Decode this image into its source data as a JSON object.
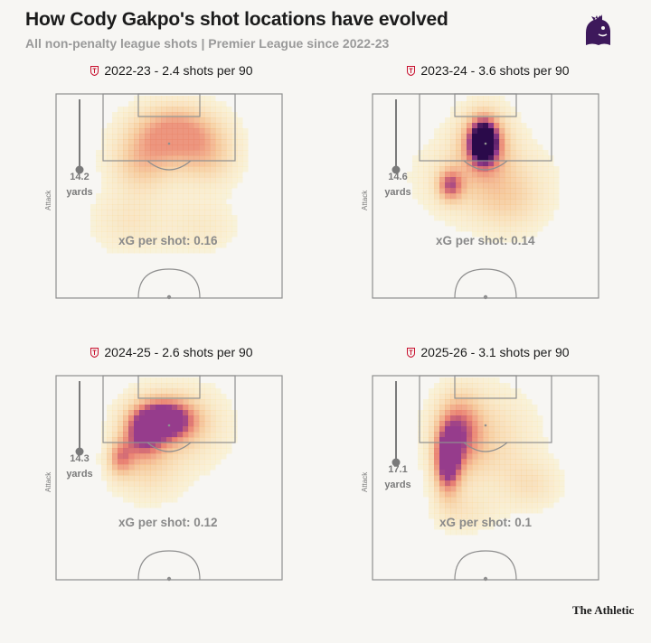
{
  "header": {
    "title": "How Cody Gakpo's shot locations have evolved",
    "subtitle": "All non-penalty league shots | Premier League since 2022-23"
  },
  "colors": {
    "background": "#f7f6f3",
    "pitch_lines": "#8f8f8f",
    "heat_low": "#fff4b0",
    "heat_mid": "#f08a5d",
    "heat_high": "#2a0a4a",
    "annotation": "#7a7a7a"
  },
  "icons": {
    "league_logo": "premier-league-lion-icon",
    "club_crest": "liverpool-crest-icon"
  },
  "chart_data": [
    {
      "type": "heatmap",
      "season": "2022-23",
      "header": "2022-23 - 2.4 shots per 90",
      "shots_per_90": 2.4,
      "avg_distance_value": "14.2",
      "avg_distance_unit": "yards",
      "xg_label": "xG per shot: 0.16",
      "xg_per_shot": 0.16,
      "axis_label": "Attack",
      "density_peak": 0.55
    },
    {
      "type": "heatmap",
      "season": "2023-24",
      "header": "2023-24 - 3.6 shots per 90",
      "shots_per_90": 3.6,
      "avg_distance_value": "14.6",
      "avg_distance_unit": "yards",
      "xg_label": "xG per shot: 0.14",
      "xg_per_shot": 0.14,
      "axis_label": "Attack",
      "density_peak": 1.0
    },
    {
      "type": "heatmap",
      "season": "2024-25",
      "header": "2024-25 - 2.6 shots per 90",
      "shots_per_90": 2.6,
      "avg_distance_value": "14.3",
      "avg_distance_unit": "yards",
      "xg_label": "xG per shot: 0.12",
      "xg_per_shot": 0.12,
      "axis_label": "Attack",
      "density_peak": 0.8
    },
    {
      "type": "heatmap",
      "season": "2025-26",
      "header": "2025-26 - 3.1 shots per 90",
      "shots_per_90": 3.1,
      "avg_distance_value": "17.1",
      "avg_distance_unit": "yards",
      "xg_label": "xG per shot: 0.1",
      "xg_per_shot": 0.1,
      "axis_label": "Attack",
      "density_peak": 0.8
    }
  ],
  "footer": {
    "brand": "The Athletic"
  }
}
